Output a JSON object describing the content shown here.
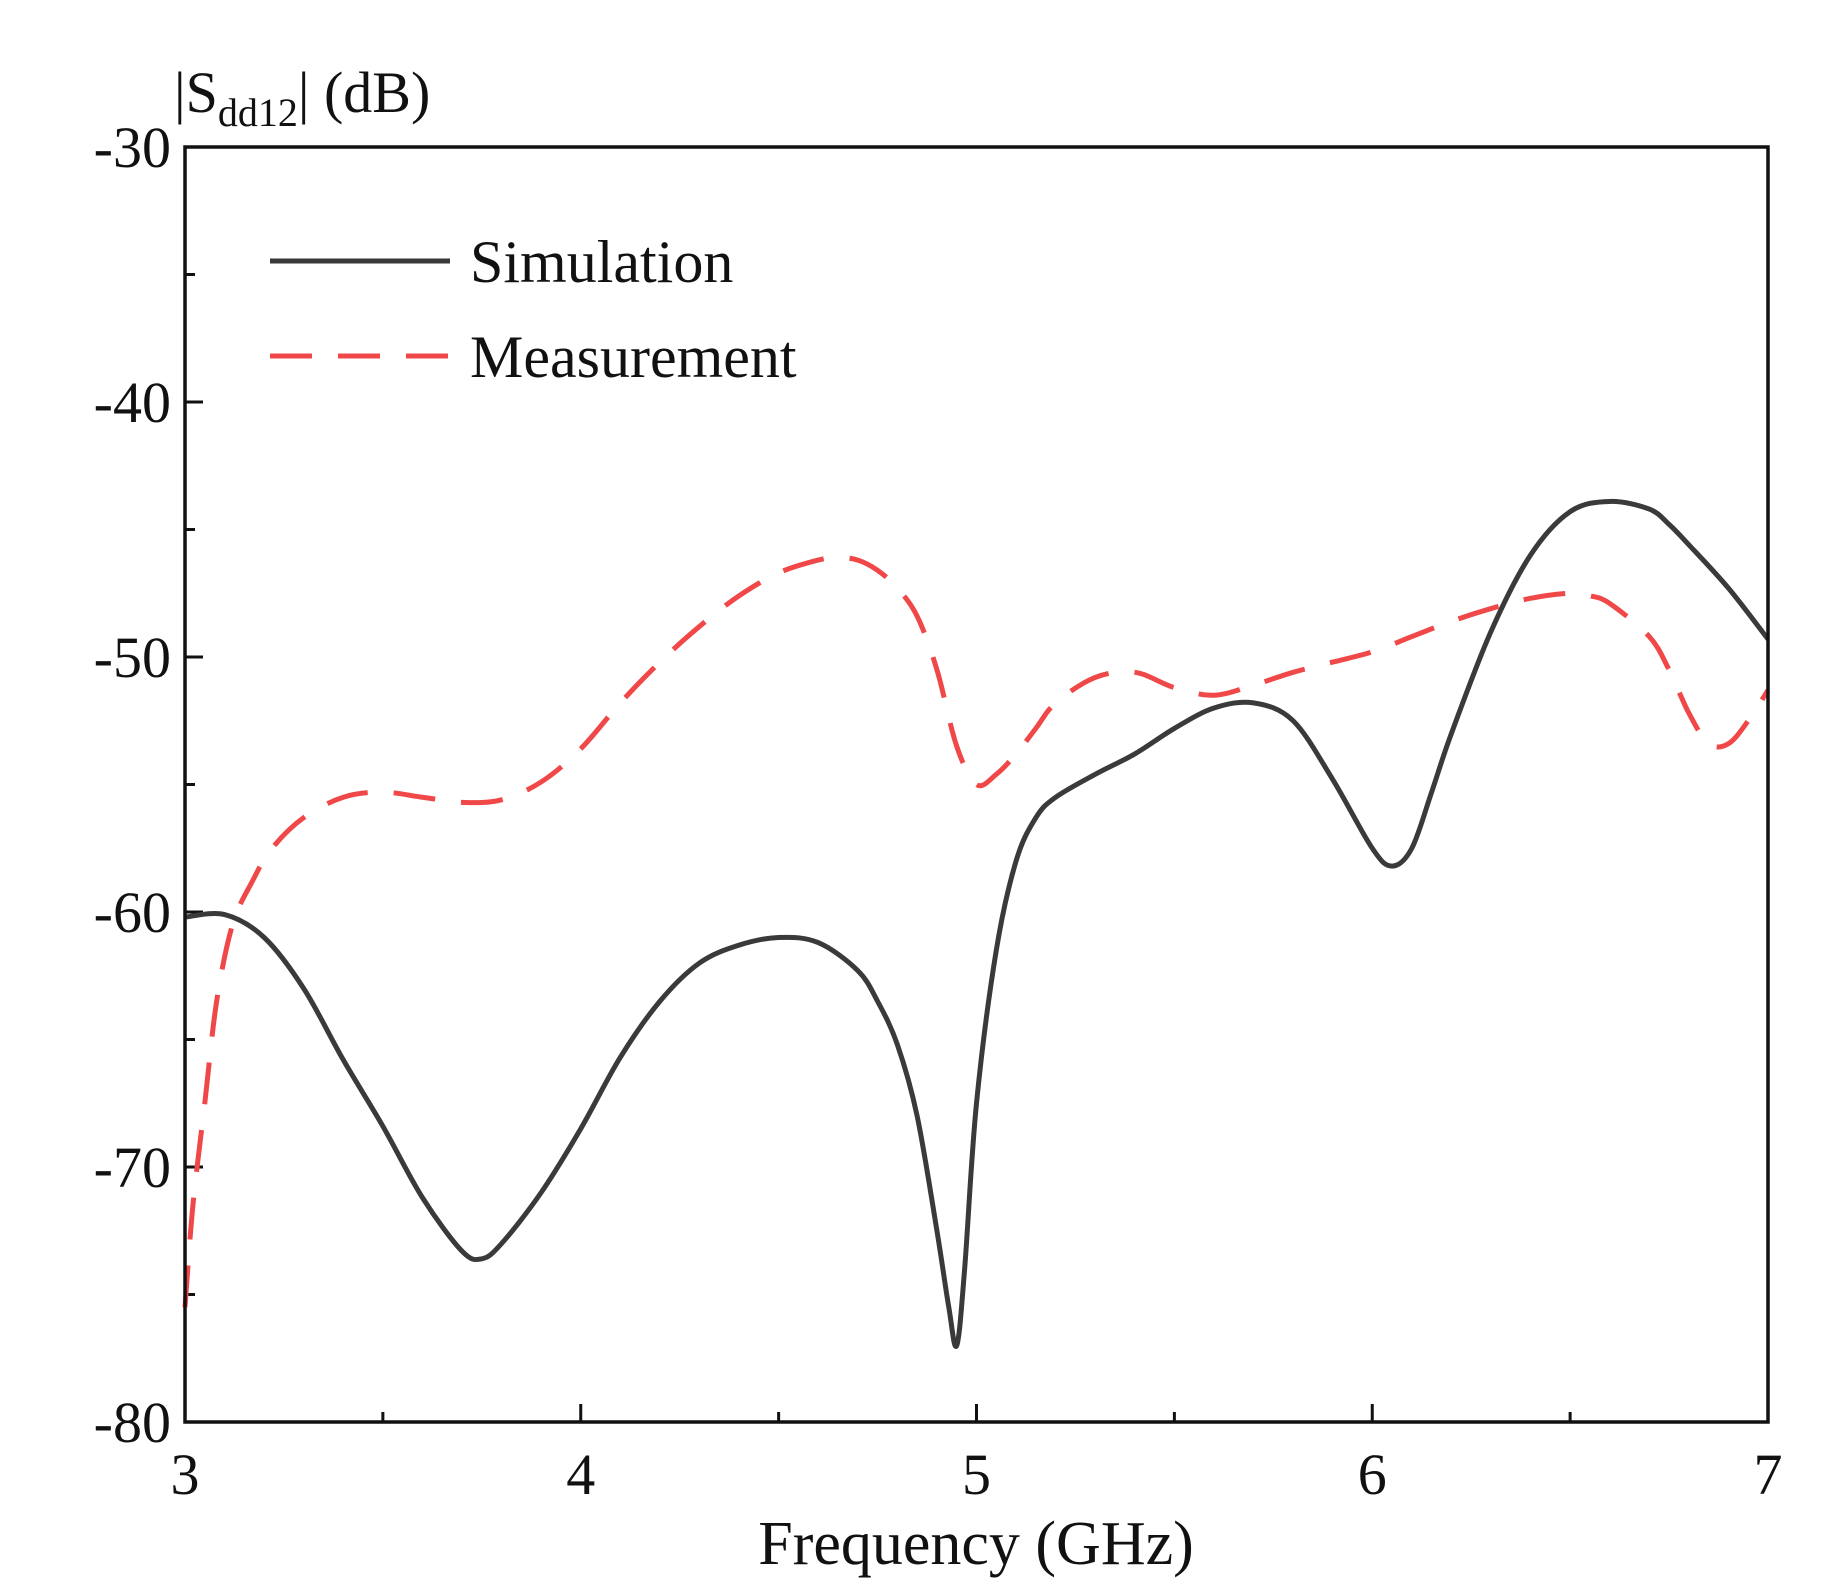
{
  "chart_data": {
    "type": "line",
    "title": "",
    "ylabel": "|S_dd12| (dB)",
    "ylabel_parts": {
      "prefix": "|S",
      "subscript": "dd12",
      "suffix": "| (dB)"
    },
    "xlabel": "Frequency (GHz)",
    "xlim": [
      3,
      7
    ],
    "ylim": [
      -80,
      -30
    ],
    "x_ticks": [
      3,
      4,
      5,
      6,
      7
    ],
    "x_tick_labels": [
      "3",
      "4",
      "5",
      "6",
      "7"
    ],
    "x_minor_ticks": [
      3.5,
      4.5,
      5.5,
      6.5
    ],
    "y_ticks": [
      -80,
      -70,
      -60,
      -50,
      -40,
      -30
    ],
    "y_tick_labels": [
      "-80",
      "-70",
      "-60",
      "-50",
      "-40",
      "-30"
    ],
    "y_minor_ticks": [
      -75,
      -65,
      -55,
      -45,
      -35
    ],
    "grid": false,
    "legend_position": "top-left",
    "series": [
      {
        "name": "Simulation",
        "color": "#3a3a3a",
        "style": "solid",
        "x": [
          3.0,
          3.1,
          3.2,
          3.3,
          3.4,
          3.5,
          3.6,
          3.7,
          3.75,
          3.8,
          3.9,
          4.0,
          4.1,
          4.2,
          4.3,
          4.4,
          4.5,
          4.6,
          4.7,
          4.75,
          4.8,
          4.85,
          4.9,
          4.93,
          4.95,
          4.97,
          5.0,
          5.05,
          5.1,
          5.15,
          5.2,
          5.3,
          5.4,
          5.5,
          5.6,
          5.7,
          5.8,
          5.9,
          6.0,
          6.05,
          6.1,
          6.15,
          6.2,
          6.3,
          6.4,
          6.5,
          6.6,
          6.7,
          6.75,
          6.8,
          6.9,
          7.0
        ],
        "y": [
          -60.2,
          -60.1,
          -61.0,
          -63.0,
          -65.8,
          -68.4,
          -71.2,
          -73.3,
          -73.6,
          -73.0,
          -71.0,
          -68.5,
          -65.7,
          -63.5,
          -62.0,
          -61.3,
          -61.0,
          -61.2,
          -62.3,
          -63.5,
          -65.2,
          -68.0,
          -72.5,
          -75.5,
          -77.0,
          -74.0,
          -67.5,
          -61.5,
          -58.0,
          -56.3,
          -55.5,
          -54.6,
          -53.8,
          -52.8,
          -52.0,
          -51.8,
          -52.5,
          -54.8,
          -57.5,
          -58.2,
          -57.5,
          -55.3,
          -53.0,
          -49.0,
          -46.0,
          -44.3,
          -43.9,
          -44.2,
          -44.8,
          -45.6,
          -47.3,
          -49.3
        ]
      },
      {
        "name": "Measurement",
        "color": "#f04848",
        "style": "dashed",
        "x": [
          3.0,
          3.02,
          3.05,
          3.08,
          3.12,
          3.17,
          3.22,
          3.3,
          3.4,
          3.5,
          3.6,
          3.7,
          3.8,
          3.9,
          4.0,
          4.1,
          4.2,
          4.3,
          4.4,
          4.5,
          4.6,
          4.65,
          4.7,
          4.75,
          4.8,
          4.85,
          4.9,
          4.95,
          5.0,
          5.05,
          5.1,
          5.15,
          5.2,
          5.3,
          5.4,
          5.5,
          5.6,
          5.7,
          5.8,
          5.9,
          6.0,
          6.1,
          6.2,
          6.3,
          6.4,
          6.5,
          6.55,
          6.6,
          6.7,
          6.75,
          6.8,
          6.85,
          6.9,
          6.95,
          7.0
        ],
        "y": [
          -75.5,
          -71.5,
          -67.5,
          -63.5,
          -60.5,
          -58.8,
          -57.5,
          -56.3,
          -55.5,
          -55.3,
          -55.5,
          -55.7,
          -55.6,
          -54.9,
          -53.6,
          -51.8,
          -50.2,
          -48.8,
          -47.6,
          -46.7,
          -46.2,
          -46.1,
          -46.2,
          -46.6,
          -47.3,
          -48.4,
          -50.5,
          -53.5,
          -55.0,
          -54.6,
          -53.8,
          -52.8,
          -51.8,
          -50.8,
          -50.6,
          -51.2,
          -51.5,
          -51.1,
          -50.6,
          -50.2,
          -49.8,
          -49.2,
          -48.6,
          -48.1,
          -47.7,
          -47.5,
          -47.6,
          -47.9,
          -49.2,
          -50.5,
          -52.2,
          -53.4,
          -53.4,
          -52.5,
          -51.3
        ]
      }
    ]
  }
}
